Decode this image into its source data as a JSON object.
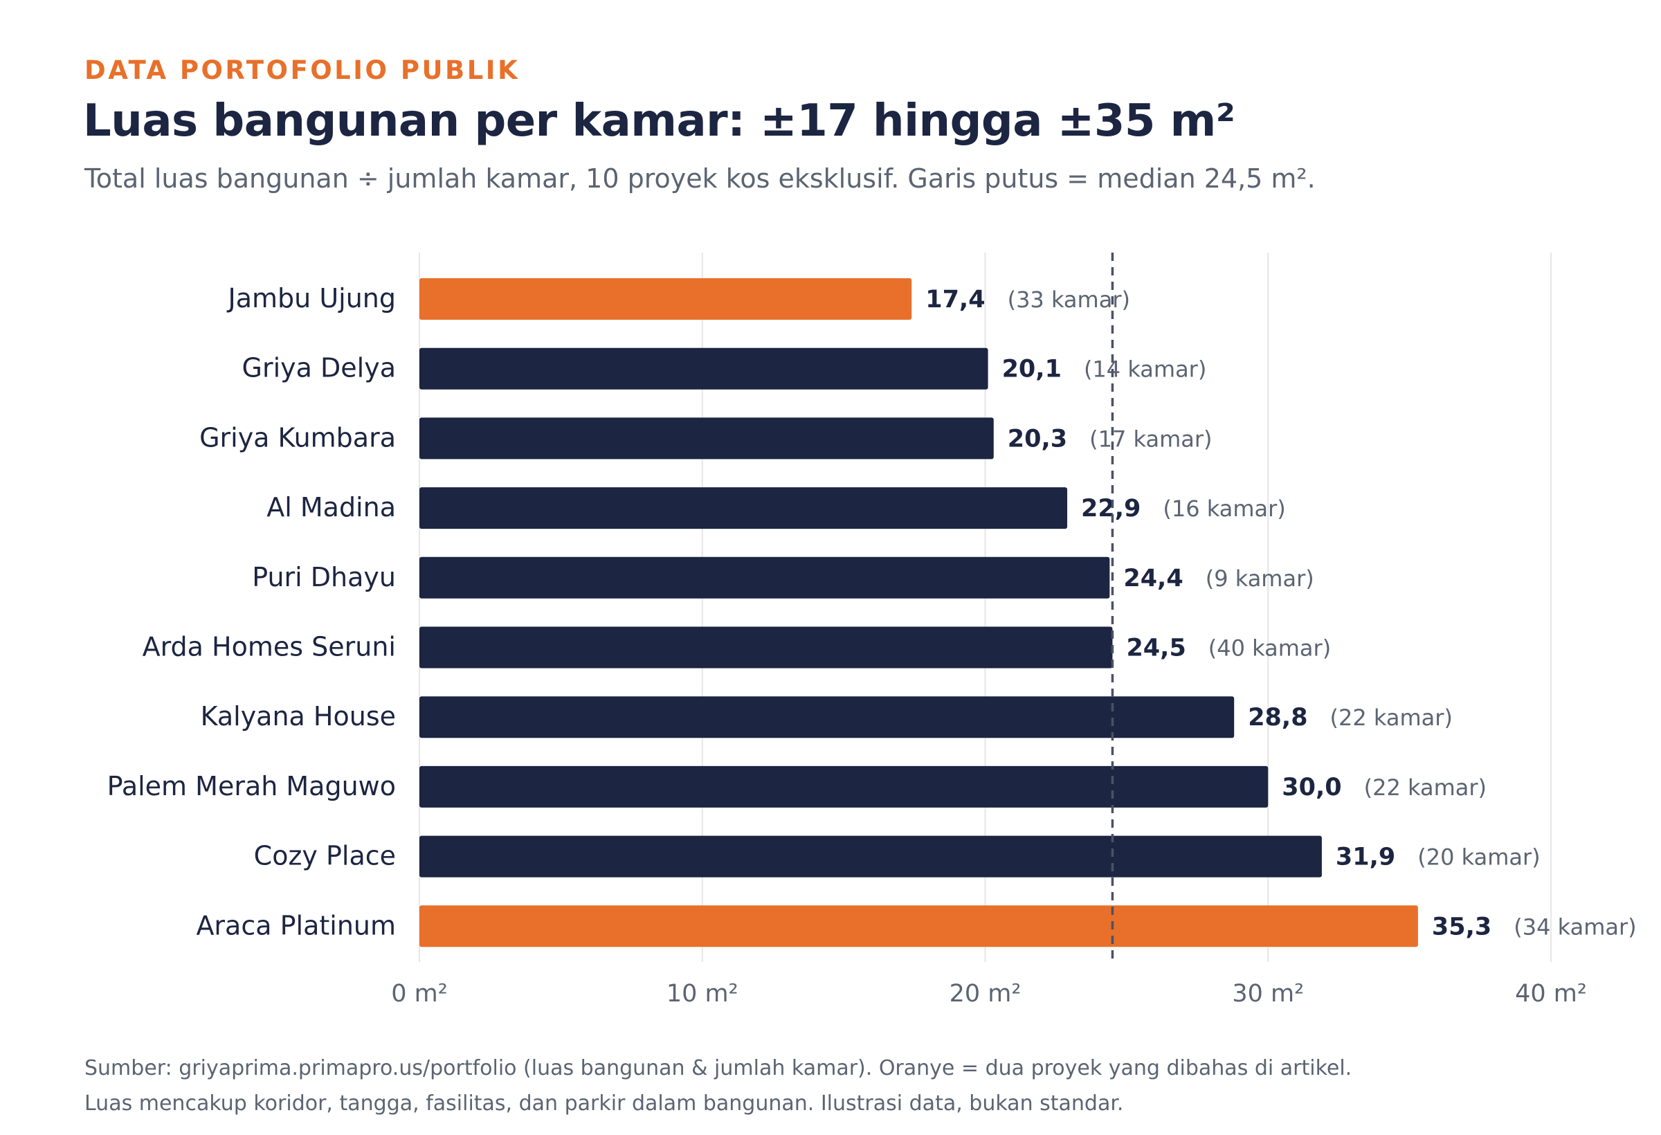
{
  "header": {
    "kicker": "DATA PORTOFOLIO PUBLIK",
    "title": "Luas bangunan per kamar: ±17 hingga ±35 m²",
    "subtitle": "Total luas bangunan ÷ jumlah kamar, 10 proyek kos eksklusif. Garis putus = median 24,5 m²."
  },
  "footer": {
    "line1": "Sumber: griyaprima.primapro.us/portfolio (luas bangunan & jumlah kamar). Oranye = dua proyek yang dibahas di artikel.",
    "line2": "Luas mencakup koridor, tangga, fasilitas, dan parkir dalam bangunan. Ilustrasi data, bukan standar."
  },
  "colors": {
    "highlight": "#e8702a",
    "default": "#1c2541",
    "grid": "#e6e6e6",
    "median_line": "#4a5266",
    "muted_text": "#5b6472"
  },
  "chart_data": {
    "type": "bar",
    "orientation": "horizontal",
    "categories": [
      "Jambu Ujung",
      "Griya Delya",
      "Griya Kumbara",
      "Al Madina",
      "Puri Dhayu",
      "Arda Homes Seruni",
      "Kalyana House",
      "Palem Merah Maguwo",
      "Cozy Place",
      "Araca Platinum"
    ],
    "values": [
      17.4,
      20.1,
      20.3,
      22.9,
      24.4,
      24.5,
      28.8,
      30.0,
      31.9,
      35.3
    ],
    "value_labels": [
      "17,4",
      "20,1",
      "20,3",
      "22,9",
      "24,4",
      "24,5",
      "28,8",
      "30,0",
      "31,9",
      "35,3"
    ],
    "annotations": [
      "(33 kamar)",
      "(14 kamar)",
      "(17 kamar)",
      "(16 kamar)",
      "(9 kamar)",
      "(40 kamar)",
      "(22 kamar)",
      "(22 kamar)",
      "(20 kamar)",
      "(34 kamar)"
    ],
    "highlighted": [
      true,
      false,
      false,
      false,
      false,
      false,
      false,
      false,
      false,
      true
    ],
    "xlim": [
      0,
      40
    ],
    "xticks": [
      0,
      10,
      20,
      30,
      40
    ],
    "xtick_labels": [
      "0 m²",
      "10 m²",
      "20 m²",
      "30 m²",
      "40 m²"
    ],
    "median": 24.5,
    "grid": true
  }
}
